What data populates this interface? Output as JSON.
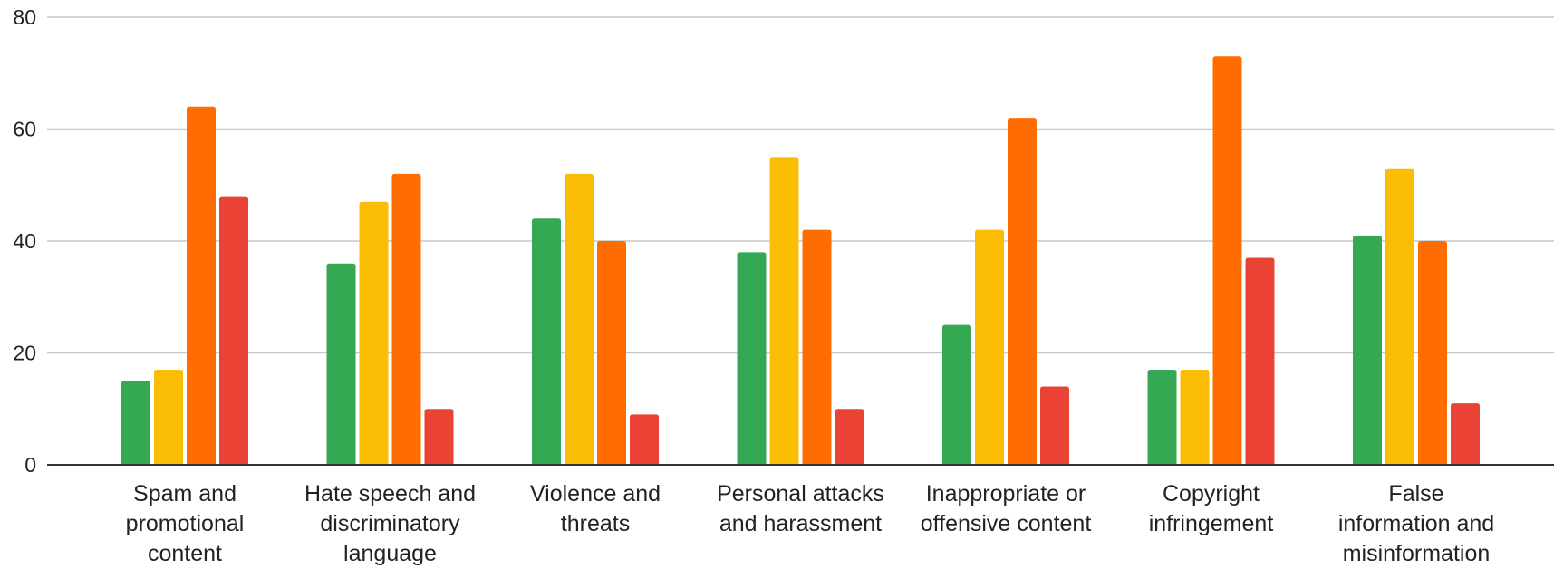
{
  "chart_data": {
    "type": "bar",
    "title": "",
    "xlabel": "",
    "ylabel": "",
    "ylim": [
      0,
      80
    ],
    "yticks": [
      0,
      20,
      40,
      60,
      80
    ],
    "grid": true,
    "legend": "none",
    "categories": [
      [
        "Spam and",
        "promotional",
        "content"
      ],
      [
        "Hate speech and",
        "discriminatory",
        "language"
      ],
      [
        "Violence and",
        "threats"
      ],
      [
        "Personal attacks",
        "and harassment"
      ],
      [
        "Inappropriate or",
        "offensive content"
      ],
      [
        "Copyright",
        "infringement"
      ],
      [
        "False",
        "information and",
        "misinformation"
      ]
    ],
    "series": [
      {
        "color": "#34a853",
        "values": [
          15,
          36,
          44,
          38,
          25,
          17,
          41
        ]
      },
      {
        "color": "#fbbc04",
        "values": [
          17,
          47,
          52,
          55,
          42,
          17,
          53
        ]
      },
      {
        "color": "#ff6d01",
        "values": [
          64,
          52,
          40,
          42,
          62,
          73,
          40
        ]
      },
      {
        "color": "#ea4335",
        "values": [
          48,
          10,
          9,
          10,
          14,
          37,
          11
        ]
      }
    ],
    "colors": {
      "grid": "#c8c8c8",
      "axis": "#333333",
      "text": "#222222"
    }
  }
}
